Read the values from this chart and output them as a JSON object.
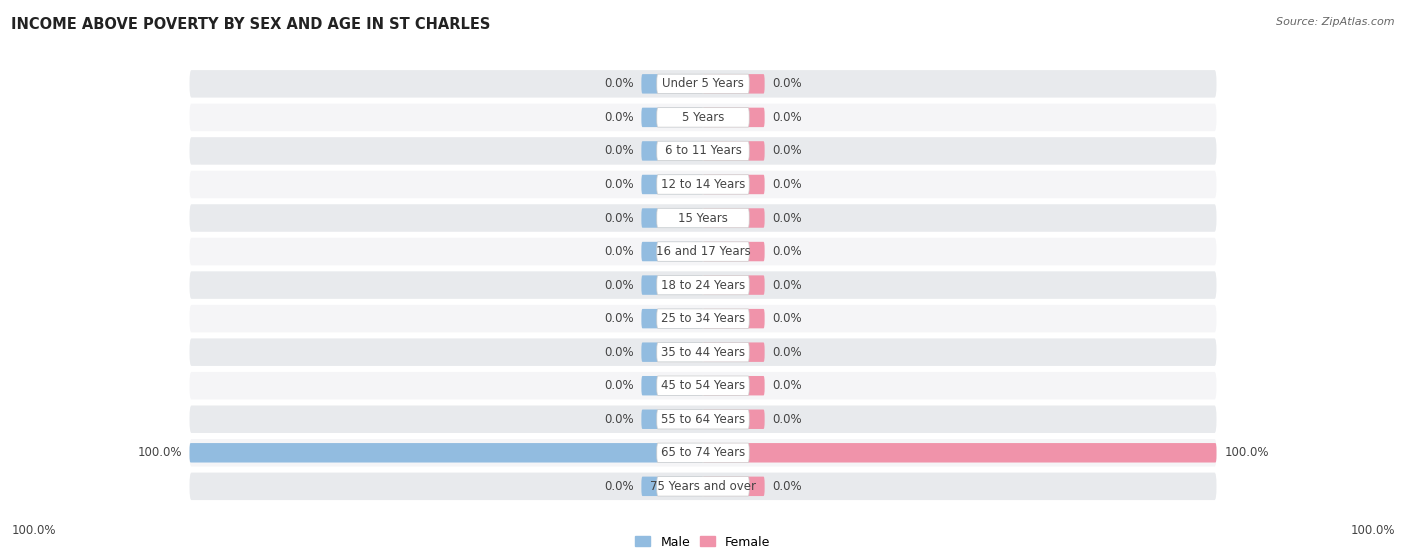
{
  "title": "INCOME ABOVE POVERTY BY SEX AND AGE IN ST CHARLES",
  "source_text": "Source: ZipAtlas.com",
  "categories": [
    "Under 5 Years",
    "5 Years",
    "6 to 11 Years",
    "12 to 14 Years",
    "15 Years",
    "16 and 17 Years",
    "18 to 24 Years",
    "25 to 34 Years",
    "35 to 44 Years",
    "45 to 54 Years",
    "55 to 64 Years",
    "65 to 74 Years",
    "75 Years and over"
  ],
  "male_values": [
    0.0,
    0.0,
    0.0,
    0.0,
    0.0,
    0.0,
    0.0,
    0.0,
    0.0,
    0.0,
    0.0,
    100.0,
    0.0
  ],
  "female_values": [
    0.0,
    0.0,
    0.0,
    0.0,
    0.0,
    0.0,
    0.0,
    0.0,
    0.0,
    0.0,
    0.0,
    100.0,
    0.0
  ],
  "male_color": "#92bce0",
  "female_color": "#f093aa",
  "male_label": "Male",
  "female_label": "Female",
  "row_bg_even": "#e8eaed",
  "row_bg_odd": "#f5f5f7",
  "title_fontsize": 10.5,
  "label_fontsize": 8.5,
  "cat_fontsize": 8.5,
  "axis_max": 100.0,
  "bar_height": 0.58,
  "min_bar_width": 12.0,
  "label_color": "#444444",
  "source_color": "#666666"
}
